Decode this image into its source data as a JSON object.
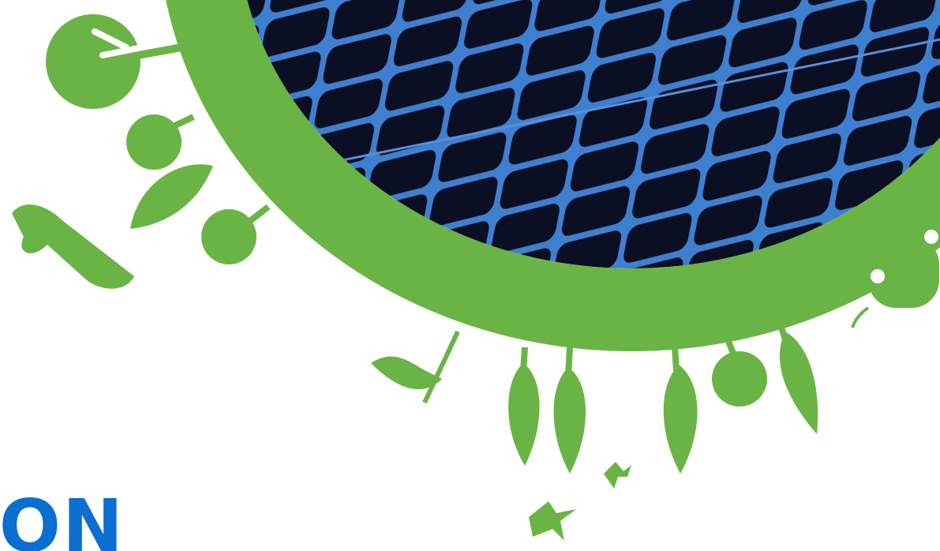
{
  "logo": "EATON"
}
